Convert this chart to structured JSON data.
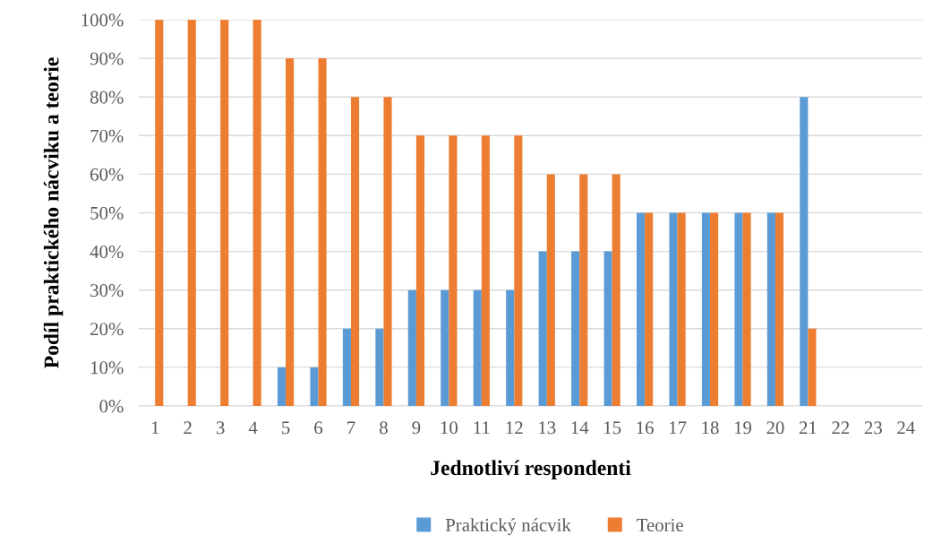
{
  "chart_data": {
    "type": "bar",
    "xlabel": "Jednotliví respondenti",
    "ylabel": "Podíl praktického nácviku a teorie",
    "categories": [
      "1",
      "2",
      "3",
      "4",
      "5",
      "6",
      "7",
      "8",
      "9",
      "10",
      "11",
      "12",
      "13",
      "14",
      "15",
      "16",
      "17",
      "18",
      "19",
      "20",
      "21",
      "22",
      "23",
      "24"
    ],
    "series": [
      {
        "name": "Praktický nácvik",
        "color": "#5b9bd5",
        "values": [
          0,
          0,
          0,
          0,
          10,
          10,
          20,
          20,
          30,
          30,
          30,
          30,
          40,
          40,
          40,
          50,
          50,
          50,
          50,
          50,
          80,
          null,
          null,
          null
        ]
      },
      {
        "name": "Teorie",
        "color": "#ed7d31",
        "values": [
          100,
          100,
          100,
          100,
          90,
          90,
          80,
          80,
          70,
          70,
          70,
          70,
          60,
          60,
          60,
          50,
          50,
          50,
          50,
          50,
          20,
          null,
          null,
          null
        ]
      }
    ],
    "ylim": [
      0,
      100
    ],
    "yticks": [
      {
        "value": 0,
        "label": "0%"
      },
      {
        "value": 10,
        "label": "10%"
      },
      {
        "value": 20,
        "label": "20%"
      },
      {
        "value": 30,
        "label": "30%"
      },
      {
        "value": 40,
        "label": "40%"
      },
      {
        "value": 50,
        "label": "50%"
      },
      {
        "value": 60,
        "label": "60%"
      },
      {
        "value": 70,
        "label": "70%"
      },
      {
        "value": 80,
        "label": "80%"
      },
      {
        "value": 90,
        "label": "90%"
      },
      {
        "value": 100,
        "label": "100%"
      }
    ],
    "grid": "y",
    "legend": "bottom"
  }
}
